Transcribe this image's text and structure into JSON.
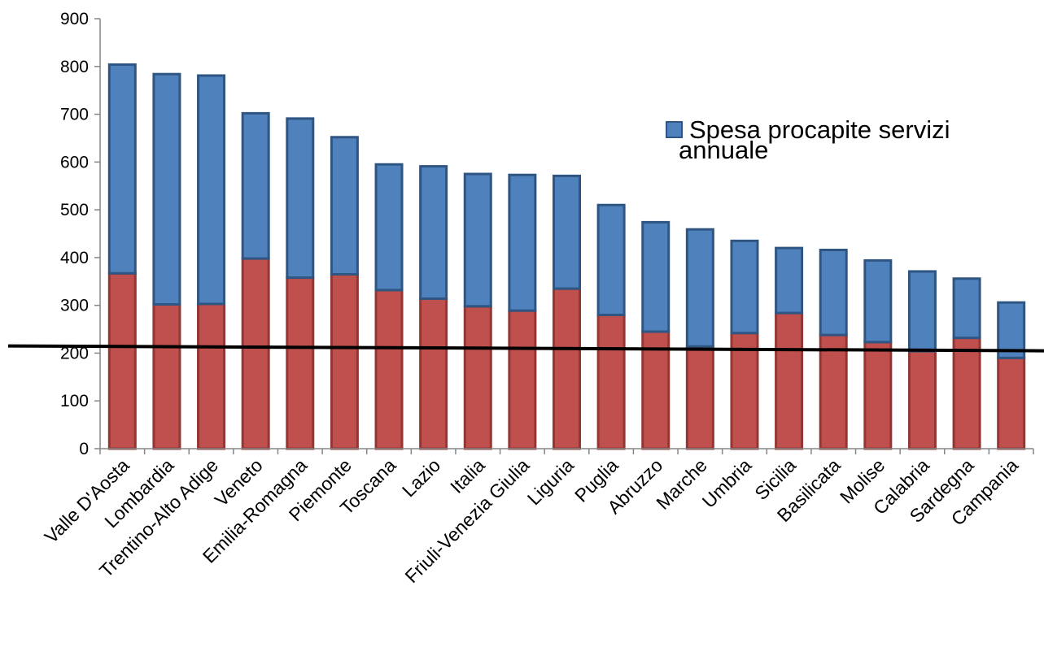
{
  "chart_data": {
    "type": "bar",
    "stacked": true,
    "categories": [
      "Valle D'Aosta",
      "Lombardia",
      "Trentino-Alto Adige",
      "Veneto",
      "Emilia-Romagna",
      "Piemonte",
      "Toscana",
      "Lazio",
      "Italia",
      "Friuli-Venezia Giulia",
      "Liguria",
      "Puglia",
      "Abruzzo",
      "Marche",
      "Umbria",
      "Sicilia",
      "Basilicata",
      "Molise",
      "Calabria",
      "Sardegna",
      "Campania"
    ],
    "series": [
      {
        "color": "#c0504d",
        "border": "#943634",
        "values": [
          367,
          302,
          303,
          398,
          358,
          365,
          332,
          314,
          298,
          289,
          335,
          280,
          245,
          214,
          242,
          284,
          238,
          223,
          204,
          232,
          190
        ]
      },
      {
        "name": "Spesa procapite servizi annuale",
        "color": "#4f81bd",
        "border": "#2f5682",
        "values": [
          437,
          482,
          478,
          304,
          333,
          287,
          263,
          277,
          277,
          284,
          236,
          230,
          229,
          245,
          193,
          136,
          178,
          171,
          167,
          124,
          116
        ]
      }
    ],
    "totals": [
      804,
      784,
      781,
      702,
      691,
      652,
      595,
      591,
      575,
      573,
      571,
      510,
      474,
      459,
      435,
      420,
      416,
      394,
      371,
      356,
      306
    ],
    "yticks": [
      0,
      100,
      200,
      300,
      400,
      500,
      600,
      700,
      800,
      900
    ],
    "ylim": [
      0,
      900
    ],
    "reference_line": 210,
    "legend": {
      "position": "right",
      "lines": [
        "Spesa procapite servizi",
        "annuale"
      ]
    },
    "grid": false
  }
}
